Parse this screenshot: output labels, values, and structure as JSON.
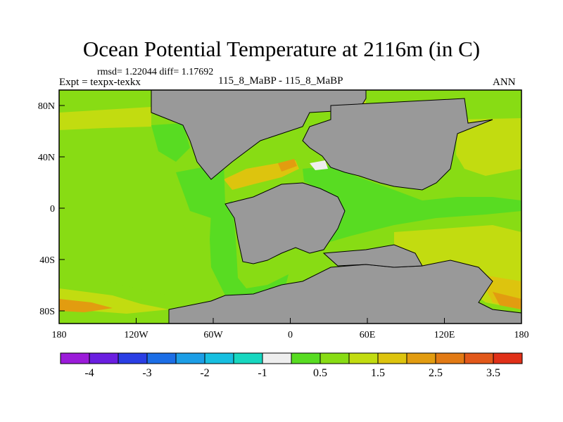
{
  "title": "Ocean Potential Temperature at 2116m (in C)",
  "stats": "rmsd= 1.22044  diff= 1.17692",
  "expt": "Expt = texpx-texkx",
  "cases": "115_8_MaBP - 115_8_MaBP",
  "season": "ANN",
  "map": {
    "lon_ticks": [
      "180",
      "120W",
      "60W",
      "0",
      "60E",
      "120E",
      "180"
    ],
    "lat_ticks": [
      "80N",
      "40N",
      "0",
      "40S",
      "80S"
    ],
    "land_color": "#999999"
  },
  "colorbar": {
    "colors": [
      "#9b1bd9",
      "#6a1ee0",
      "#2a3ee4",
      "#1c6ee6",
      "#1c9ee6",
      "#17bfe0",
      "#17d7c0",
      "#eeeeee",
      "#58dc22",
      "#88dc14",
      "#c2dc10",
      "#ddc40e",
      "#e29c10",
      "#e27a14",
      "#e2581a",
      "#e03018"
    ],
    "labels": [
      "-4",
      "-3",
      "-2",
      "-1",
      "0.5",
      "1.5",
      "2.5",
      "3.5"
    ]
  }
}
